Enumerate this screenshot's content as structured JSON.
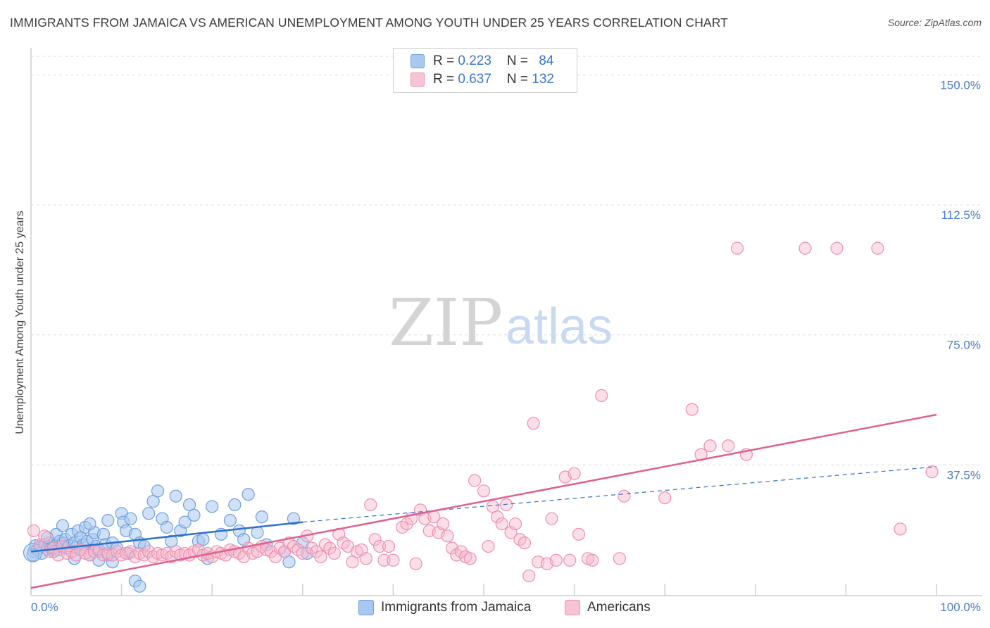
{
  "title": "IMMIGRANTS FROM JAMAICA VS AMERICAN UNEMPLOYMENT AMONG YOUTH UNDER 25 YEARS CORRELATION CHART",
  "source": "Source: ZipAtlas.com",
  "watermark": {
    "zip": "ZIP",
    "atlas": "atlas"
  },
  "legend": {
    "rows": [
      {
        "r_label": "R = ",
        "r_value": "0.223",
        "n_label": "N = ",
        "n_value": "84"
      },
      {
        "r_label": "R = ",
        "r_value": "0.637",
        "n_label": "N = ",
        "n_value": "132"
      }
    ]
  },
  "bottom_legend": [
    "Immigrants from Jamaica",
    "Americans"
  ],
  "colors": {
    "blue_fill": "#a9c8f0",
    "blue_stroke": "#6d9fdc",
    "blue_line": "#2e6fcb",
    "pink_fill": "#f7b8cd",
    "pink_stroke": "#ee8fb0",
    "pink_line": "#e0608f",
    "grid": "#dcdcdc",
    "tick_text": "#4a7cc4"
  },
  "chart_data": {
    "type": "scatter",
    "title": "IMMIGRANTS FROM JAMAICA VS AMERICAN UNEMPLOYMENT AMONG YOUTH UNDER 25 YEARS CORRELATION CHART",
    "xlabel": "",
    "ylabel": "Unemployment Among Youth under 25 years",
    "xlim": [
      0,
      100
    ],
    "ylim": [
      0,
      157
    ],
    "x_tick_labels": [
      "0.0%",
      "100.0%"
    ],
    "y_ticks": [
      37.5,
      75.0,
      112.5,
      150.0
    ],
    "y_tick_labels": [
      "37.5%",
      "75.0%",
      "112.5%",
      "150.0%"
    ],
    "series": [
      {
        "name": "Immigrants from Jamaica",
        "color": "blue",
        "r": 0.223,
        "n": 84,
        "trend": {
          "solid": [
            [
              0,
              12.5
            ],
            [
              30,
              21.0
            ]
          ],
          "dashed": [
            [
              30,
              21.0
            ],
            [
              100,
              37.0
            ]
          ]
        },
        "points": [
          [
            0.3,
            12.5
          ],
          [
            0.5,
            14.2
          ],
          [
            0.7,
            13.0
          ],
          [
            1.0,
            13.8
          ],
          [
            1.2,
            12.0
          ],
          [
            1.5,
            14.5
          ],
          [
            1.8,
            13.2
          ],
          [
            2.0,
            15.0
          ],
          [
            2.2,
            13.5
          ],
          [
            2.5,
            14.0
          ],
          [
            2.8,
            17.5
          ],
          [
            3.0,
            13.0
          ],
          [
            3.2,
            15.5
          ],
          [
            3.5,
            14.8
          ],
          [
            3.8,
            16.0
          ],
          [
            4.0,
            13.5
          ],
          [
            4.2,
            14.2
          ],
          [
            4.5,
            17.5
          ],
          [
            4.8,
            15.0
          ],
          [
            5.0,
            13.8
          ],
          [
            5.2,
            18.5
          ],
          [
            5.5,
            16.5
          ],
          [
            5.8,
            14.5
          ],
          [
            6.0,
            19.5
          ],
          [
            6.2,
            15.5
          ],
          [
            6.5,
            11.5
          ],
          [
            6.8,
            16.0
          ],
          [
            7.0,
            18.0
          ],
          [
            7.2,
            14.0
          ],
          [
            7.5,
            12.5
          ],
          [
            8.0,
            17.5
          ],
          [
            8.2,
            14.5
          ],
          [
            8.5,
            11.5
          ],
          [
            9.0,
            15.0
          ],
          [
            9.5,
            13.5
          ],
          [
            10.0,
            23.5
          ],
          [
            10.2,
            21.0
          ],
          [
            10.5,
            18.5
          ],
          [
            10.8,
            12.0
          ],
          [
            11.0,
            22.0
          ],
          [
            11.5,
            17.5
          ],
          [
            12.0,
            15.0
          ],
          [
            12.5,
            14.0
          ],
          [
            13.0,
            23.5
          ],
          [
            13.5,
            27.0
          ],
          [
            14.0,
            30.0
          ],
          [
            14.5,
            22.0
          ],
          [
            15.0,
            19.5
          ],
          [
            15.5,
            15.5
          ],
          [
            16.0,
            28.5
          ],
          [
            16.5,
            18.5
          ],
          [
            17.0,
            21.0
          ],
          [
            17.5,
            26.0
          ],
          [
            18.0,
            23.0
          ],
          [
            18.5,
            15.5
          ],
          [
            19.0,
            16.0
          ],
          [
            19.5,
            10.5
          ],
          [
            20.0,
            25.5
          ],
          [
            21.0,
            17.5
          ],
          [
            22.0,
            21.5
          ],
          [
            22.5,
            26.0
          ],
          [
            23.0,
            18.5
          ],
          [
            23.5,
            16.0
          ],
          [
            24.0,
            29.0
          ],
          [
            25.0,
            18.0
          ],
          [
            25.5,
            22.5
          ],
          [
            26.0,
            14.5
          ],
          [
            28.0,
            12.5
          ],
          [
            28.5,
            9.5
          ],
          [
            29.0,
            22.0
          ],
          [
            30.0,
            15.0
          ],
          [
            30.5,
            12.0
          ],
          [
            7.5,
            10.0
          ],
          [
            9.0,
            9.5
          ],
          [
            11.5,
            4.0
          ],
          [
            12.0,
            2.5
          ],
          [
            8.5,
            21.5
          ],
          [
            6.5,
            20.5
          ],
          [
            3.5,
            20.0
          ],
          [
            4.8,
            10.5
          ],
          [
            0.2,
            11.5
          ],
          [
            1.8,
            16.5
          ],
          [
            2.5,
            12.5
          ],
          [
            5.5,
            13.0
          ]
        ]
      },
      {
        "name": "Americans",
        "color": "pink",
        "r": 0.637,
        "n": 132,
        "trend": {
          "solid": [
            [
              0,
              2.0
            ],
            [
              100,
              52.0
            ]
          ]
        },
        "points": [
          [
            0.3,
            18.5
          ],
          [
            1.0,
            14.5
          ],
          [
            1.5,
            17.0
          ],
          [
            2.0,
            12.5
          ],
          [
            2.5,
            13.5
          ],
          [
            3.0,
            11.5
          ],
          [
            3.5,
            14.0
          ],
          [
            4.0,
            12.0
          ],
          [
            4.5,
            12.5
          ],
          [
            5.0,
            11.5
          ],
          [
            5.5,
            13.0
          ],
          [
            6.0,
            12.0
          ],
          [
            6.5,
            11.5
          ],
          [
            7.0,
            12.5
          ],
          [
            7.5,
            13.0
          ],
          [
            8.0,
            11.5
          ],
          [
            8.5,
            12.0
          ],
          [
            9.0,
            11.5
          ],
          [
            9.5,
            12.5
          ],
          [
            10.0,
            11.5
          ],
          [
            10.5,
            12.0
          ],
          [
            11.0,
            12.5
          ],
          [
            11.5,
            11.0
          ],
          [
            12.0,
            12.0
          ],
          [
            12.5,
            11.5
          ],
          [
            13.0,
            12.5
          ],
          [
            13.5,
            11.0
          ],
          [
            14.0,
            12.0
          ],
          [
            14.5,
            11.5
          ],
          [
            15.0,
            12.0
          ],
          [
            15.5,
            11.0
          ],
          [
            16.0,
            12.5
          ],
          [
            16.5,
            11.5
          ],
          [
            17.0,
            12.0
          ],
          [
            17.5,
            11.5
          ],
          [
            18.0,
            12.5
          ],
          [
            18.5,
            13.0
          ],
          [
            19.0,
            11.5
          ],
          [
            19.5,
            12.0
          ],
          [
            20.0,
            11.0
          ],
          [
            20.5,
            12.5
          ],
          [
            21.0,
            12.0
          ],
          [
            21.5,
            11.5
          ],
          [
            22.0,
            13.0
          ],
          [
            22.5,
            12.5
          ],
          [
            23.0,
            12.0
          ],
          [
            23.5,
            11.0
          ],
          [
            24.0,
            13.5
          ],
          [
            24.5,
            12.0
          ],
          [
            25.0,
            12.5
          ],
          [
            25.5,
            14.0
          ],
          [
            26.0,
            13.0
          ],
          [
            26.5,
            12.5
          ],
          [
            27.0,
            11.0
          ],
          [
            27.5,
            13.5
          ],
          [
            28.0,
            12.5
          ],
          [
            28.5,
            15.0
          ],
          [
            29.0,
            14.0
          ],
          [
            29.5,
            13.0
          ],
          [
            30.0,
            12.0
          ],
          [
            30.5,
            17.0
          ],
          [
            31.0,
            13.5
          ],
          [
            31.5,
            12.5
          ],
          [
            32.0,
            11.0
          ],
          [
            32.5,
            14.5
          ],
          [
            33.0,
            13.5
          ],
          [
            33.5,
            12.0
          ],
          [
            34.0,
            17.5
          ],
          [
            34.5,
            15.0
          ],
          [
            35.0,
            14.0
          ],
          [
            35.5,
            9.5
          ],
          [
            36.0,
            12.5
          ],
          [
            36.5,
            13.0
          ],
          [
            37.0,
            10.5
          ],
          [
            37.5,
            26.0
          ],
          [
            38.0,
            16.0
          ],
          [
            38.5,
            14.0
          ],
          [
            39.0,
            10.0
          ],
          [
            39.5,
            14.0
          ],
          [
            40.0,
            10.0
          ],
          [
            41.0,
            19.5
          ],
          [
            41.5,
            20.5
          ],
          [
            42.0,
            22.0
          ],
          [
            42.5,
            9.0
          ],
          [
            43.0,
            24.5
          ],
          [
            43.5,
            22.0
          ],
          [
            44.0,
            18.5
          ],
          [
            44.5,
            22.5
          ],
          [
            45.0,
            18.0
          ],
          [
            45.5,
            20.5
          ],
          [
            46.0,
            17.0
          ],
          [
            46.5,
            13.5
          ],
          [
            47.0,
            11.5
          ],
          [
            47.5,
            12.5
          ],
          [
            48.0,
            11.0
          ],
          [
            48.5,
            10.5
          ],
          [
            49.0,
            33.0
          ],
          [
            50.0,
            30.0
          ],
          [
            50.5,
            14.0
          ],
          [
            51.0,
            25.5
          ],
          [
            51.5,
            22.5
          ],
          [
            52.0,
            20.5
          ],
          [
            52.5,
            26.0
          ],
          [
            53.0,
            18.0
          ],
          [
            53.5,
            20.5
          ],
          [
            54.0,
            16.0
          ],
          [
            54.5,
            15.0
          ],
          [
            55.0,
            5.5
          ],
          [
            55.5,
            49.5
          ],
          [
            56.0,
            9.5
          ],
          [
            57.0,
            9.0
          ],
          [
            57.5,
            22.0
          ],
          [
            58.0,
            10.0
          ],
          [
            59.0,
            34.0
          ],
          [
            59.5,
            10.0
          ],
          [
            60.0,
            35.0
          ],
          [
            60.5,
            17.5
          ],
          [
            61.5,
            10.5
          ],
          [
            62.0,
            10.0
          ],
          [
            63.0,
            57.5
          ],
          [
            65.0,
            10.5
          ],
          [
            65.5,
            28.5
          ],
          [
            70.0,
            28.0
          ],
          [
            73.0,
            53.5
          ],
          [
            74.0,
            40.5
          ],
          [
            75.0,
            43.0
          ],
          [
            77.0,
            43.0
          ],
          [
            79.0,
            40.5
          ],
          [
            78.0,
            100.0
          ],
          [
            85.5,
            100.0
          ],
          [
            89.0,
            100.0
          ],
          [
            93.5,
            100.0
          ],
          [
            96.0,
            19.0
          ],
          [
            99.5,
            35.5
          ]
        ]
      }
    ]
  }
}
